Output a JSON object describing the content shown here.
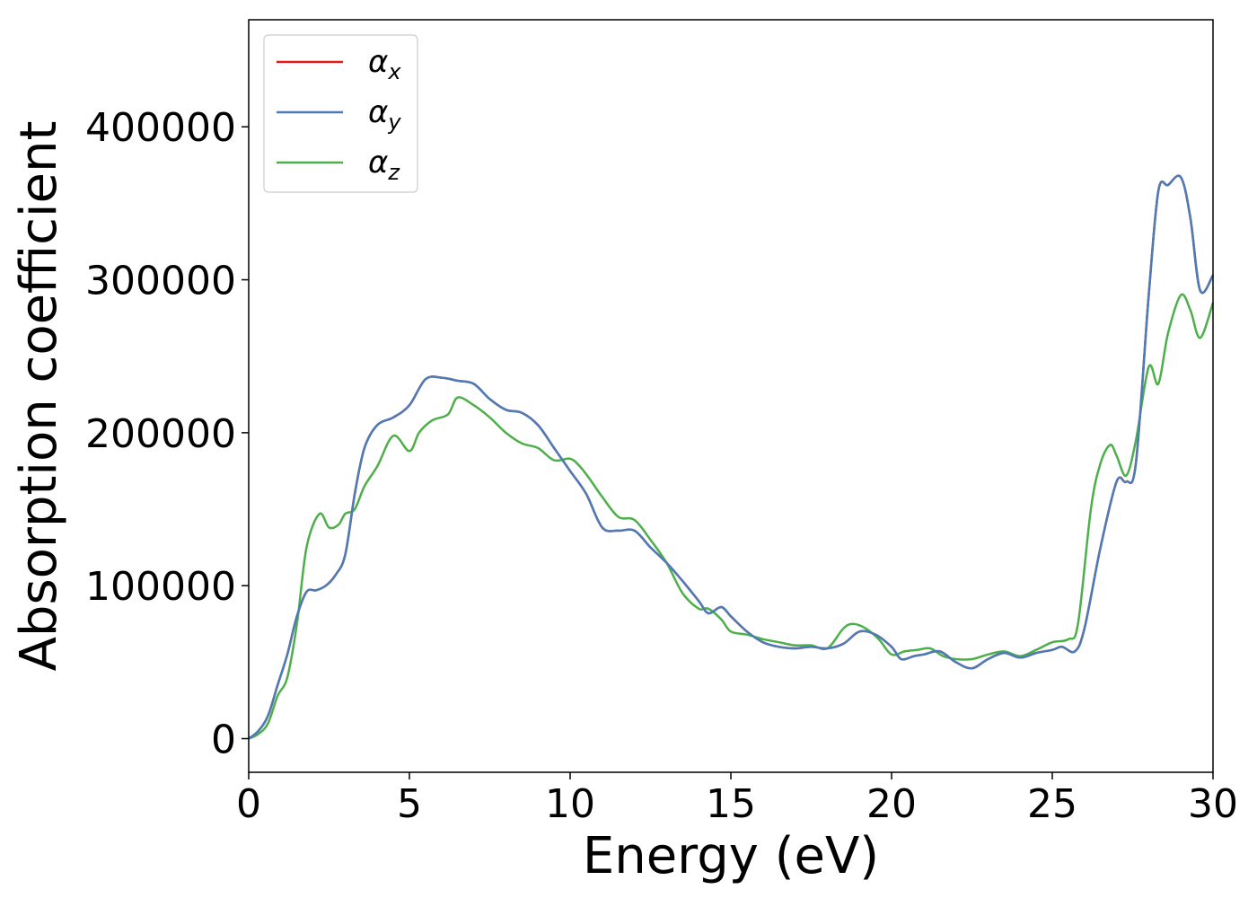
{
  "chart_data": {
    "type": "line",
    "xlabel": "Energy (eV)",
    "ylabel": "Absorption coefficient",
    "xlim": [
      0,
      30
    ],
    "ylim": [
      -22000,
      470000
    ],
    "xticks": [
      0,
      5,
      10,
      15,
      20,
      25,
      30
    ],
    "yticks": [
      0,
      100000,
      200000,
      300000,
      400000
    ],
    "grid": false,
    "legend_position": "upper-left",
    "series": [
      {
        "name": "α",
        "subscript": "x",
        "color": "#e41a1c",
        "x": [
          0,
          0.3,
          0.6,
          0.9,
          1.2,
          1.5,
          1.8,
          2.1,
          2.4,
          2.7,
          3.0,
          3.3,
          3.6,
          4.0,
          4.5,
          5.0,
          5.5,
          6.0,
          6.5,
          7.0,
          7.5,
          8.0,
          8.5,
          9.0,
          9.5,
          10.0,
          10.5,
          11.0,
          11.5,
          12.0,
          12.5,
          13.0,
          13.5,
          14.0,
          14.3,
          14.7,
          15.0,
          15.5,
          16.0,
          16.5,
          17.0,
          17.5,
          18.0,
          18.5,
          19.0,
          19.5,
          20.0,
          20.3,
          20.7,
          21.0,
          21.5,
          22.0,
          22.5,
          23.0,
          23.5,
          24.0,
          24.5,
          25.0,
          25.3,
          25.7,
          26.0,
          26.5,
          27.0,
          27.3,
          27.6,
          28.0,
          28.3,
          28.6,
          29.0,
          29.3,
          29.6,
          30.0
        ],
        "y": [
          0,
          5000,
          15000,
          35000,
          55000,
          80000,
          96000,
          97000,
          100000,
          107000,
          120000,
          160000,
          190000,
          205000,
          210000,
          218000,
          235000,
          236000,
          234000,
          232000,
          222000,
          215000,
          213000,
          205000,
          190000,
          175000,
          160000,
          138000,
          136000,
          136000,
          125000,
          115000,
          103000,
          90000,
          82000,
          86000,
          80000,
          70000,
          63000,
          60000,
          59000,
          60000,
          59000,
          62000,
          70000,
          68000,
          60000,
          52000,
          54000,
          55000,
          57000,
          50000,
          46000,
          52000,
          56000,
          53000,
          56000,
          58000,
          60000,
          57000,
          72000,
          125000,
          168000,
          168000,
          180000,
          290000,
          358000,
          362000,
          367000,
          340000,
          293000,
          303000
        ]
      },
      {
        "name": "α",
        "subscript": "y",
        "color": "#4b7cb8",
        "x": [
          0,
          0.3,
          0.6,
          0.9,
          1.2,
          1.5,
          1.8,
          2.1,
          2.4,
          2.7,
          3.0,
          3.3,
          3.6,
          4.0,
          4.5,
          5.0,
          5.5,
          6.0,
          6.5,
          7.0,
          7.5,
          8.0,
          8.5,
          9.0,
          9.5,
          10.0,
          10.5,
          11.0,
          11.5,
          12.0,
          12.5,
          13.0,
          13.5,
          14.0,
          14.3,
          14.7,
          15.0,
          15.5,
          16.0,
          16.5,
          17.0,
          17.5,
          18.0,
          18.5,
          19.0,
          19.5,
          20.0,
          20.3,
          20.7,
          21.0,
          21.5,
          22.0,
          22.5,
          23.0,
          23.5,
          24.0,
          24.5,
          25.0,
          25.3,
          25.7,
          26.0,
          26.5,
          27.0,
          27.3,
          27.6,
          28.0,
          28.3,
          28.6,
          29.0,
          29.3,
          29.6,
          30.0
        ],
        "y": [
          0,
          5000,
          15000,
          35000,
          55000,
          80000,
          96000,
          97000,
          100000,
          107000,
          120000,
          160000,
          190000,
          205000,
          210000,
          218000,
          235000,
          236000,
          234000,
          232000,
          222000,
          215000,
          213000,
          205000,
          190000,
          175000,
          160000,
          138000,
          136000,
          136000,
          125000,
          115000,
          103000,
          90000,
          82000,
          86000,
          80000,
          70000,
          63000,
          60000,
          59000,
          60000,
          59000,
          62000,
          70000,
          68000,
          60000,
          52000,
          54000,
          55000,
          57000,
          50000,
          46000,
          52000,
          56000,
          53000,
          56000,
          58000,
          60000,
          57000,
          72000,
          125000,
          168000,
          168000,
          180000,
          290000,
          358000,
          362000,
          367000,
          340000,
          293000,
          303000
        ]
      },
      {
        "name": "α",
        "subscript": "z",
        "color": "#4daf4a",
        "x": [
          0,
          0.3,
          0.6,
          0.9,
          1.2,
          1.5,
          1.8,
          2.2,
          2.5,
          2.8,
          3.0,
          3.3,
          3.6,
          4.0,
          4.5,
          5.0,
          5.3,
          5.7,
          6.2,
          6.5,
          7.0,
          7.5,
          8.0,
          8.5,
          9.0,
          9.5,
          10.0,
          10.3,
          10.6,
          11.0,
          11.5,
          12.0,
          12.5,
          13.0,
          13.5,
          14.0,
          14.3,
          14.7,
          15.0,
          15.5,
          16.0,
          16.5,
          17.0,
          17.5,
          18.0,
          18.5,
          18.8,
          19.2,
          19.6,
          20.0,
          20.4,
          20.8,
          21.2,
          21.6,
          22.0,
          22.5,
          23.0,
          23.5,
          24.0,
          24.5,
          25.0,
          25.5,
          25.8,
          26.2,
          26.5,
          26.8,
          27.0,
          27.3,
          27.6,
          28.0,
          28.3,
          28.6,
          29.0,
          29.3,
          29.6,
          30.0
        ],
        "y": [
          0,
          3000,
          10000,
          28000,
          40000,
          75000,
          125000,
          147000,
          138000,
          140000,
          147000,
          150000,
          165000,
          178000,
          198000,
          188000,
          200000,
          208000,
          212000,
          223000,
          218000,
          210000,
          200000,
          193000,
          190000,
          182000,
          183000,
          178000,
          170000,
          158000,
          145000,
          143000,
          130000,
          115000,
          95000,
          85000,
          85000,
          78000,
          70000,
          68000,
          65000,
          63000,
          61000,
          61000,
          59000,
          72000,
          75000,
          72000,
          65000,
          55000,
          57000,
          58000,
          59000,
          54000,
          52000,
          52000,
          55000,
          57000,
          54000,
          58000,
          63000,
          65000,
          75000,
          150000,
          180000,
          192000,
          185000,
          172000,
          195000,
          243000,
          232000,
          265000,
          290000,
          280000,
          262000,
          285000
        ]
      }
    ]
  }
}
